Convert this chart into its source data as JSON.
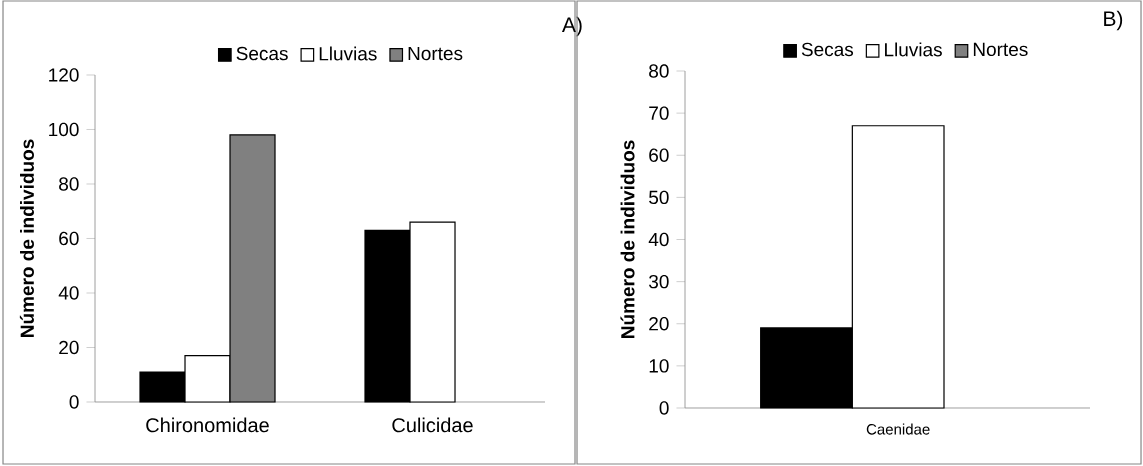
{
  "chart_data": [
    {
      "type": "bar",
      "categories": [
        "Chironomidae",
        "Culicidae"
      ],
      "ylabel": "Número de individuos",
      "ylim": [
        0,
        120
      ],
      "yticks": [
        0,
        20,
        40,
        60,
        80,
        100,
        120
      ],
      "legend": "top",
      "annotations": [
        "A)"
      ],
      "series": [
        {
          "name": "Secas",
          "color": "#000000",
          "values": [
            11,
            63
          ]
        },
        {
          "name": "Lluvias",
          "color": "#ffffff",
          "values": [
            17,
            66
          ]
        },
        {
          "name": "Nortes",
          "color": "#808080",
          "values": [
            98,
            null
          ]
        }
      ]
    },
    {
      "type": "bar",
      "categories": [
        "Caenidae"
      ],
      "ylabel": "Número de individuos",
      "ylim": [
        0,
        80
      ],
      "yticks": [
        0,
        10,
        20,
        30,
        40,
        50,
        60,
        70,
        80
      ],
      "legend": "top",
      "annotations": [
        "B)"
      ],
      "series": [
        {
          "name": "Secas",
          "color": "#000000",
          "values": [
            19
          ]
        },
        {
          "name": "Lluvias",
          "color": "#ffffff",
          "values": [
            67
          ]
        },
        {
          "name": "Nortes",
          "color": "#808080",
          "values": [
            null
          ]
        }
      ]
    }
  ]
}
